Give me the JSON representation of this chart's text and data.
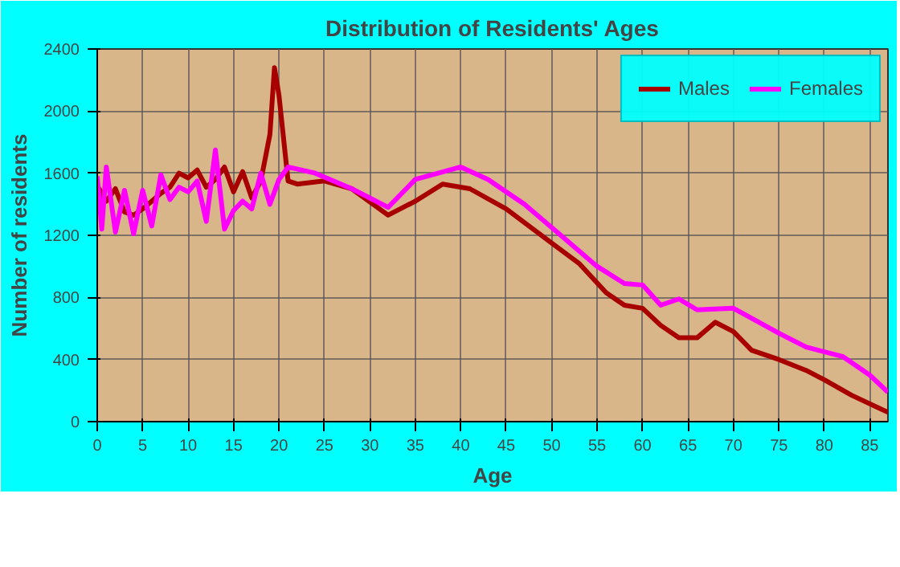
{
  "chart_data": {
    "type": "line",
    "title": "Distribution of Residents' Ages",
    "xlabel": "Age",
    "ylabel": "Number of residents",
    "xlim": [
      0,
      87
    ],
    "xticks": [
      0,
      5,
      10,
      15,
      20,
      25,
      30,
      35,
      40,
      45,
      50,
      55,
      60,
      65,
      70,
      75,
      80,
      85
    ],
    "ylim": [
      0,
      2400
    ],
    "yticks": [
      0,
      400,
      800,
      1200,
      1600,
      2000,
      2400
    ],
    "grid": true,
    "legend": "top right",
    "line_style": "solid",
    "marker": "none",
    "series": [
      {
        "name": "Males",
        "color": "#a80000",
        "x": [
          0,
          1,
          2,
          3,
          4,
          5,
          6,
          7,
          8,
          9,
          10,
          11,
          12,
          13,
          14,
          15,
          16,
          17,
          18,
          19,
          19.5,
          20,
          21,
          22,
          25,
          28,
          32,
          35,
          38,
          41,
          45,
          50,
          53,
          56,
          58,
          60,
          62,
          64,
          66,
          68,
          70,
          72,
          75,
          78,
          80,
          83,
          87
        ],
        "values": [
          1520,
          1420,
          1500,
          1350,
          1330,
          1370,
          1420,
          1470,
          1510,
          1600,
          1570,
          1620,
          1510,
          1560,
          1640,
          1480,
          1610,
          1440,
          1550,
          1850,
          2280,
          2100,
          1550,
          1530,
          1550,
          1500,
          1330,
          1420,
          1530,
          1500,
          1370,
          1150,
          1020,
          830,
          750,
          730,
          620,
          540,
          540,
          640,
          580,
          460,
          400,
          330,
          270,
          170,
          60
        ]
      },
      {
        "name": "Females",
        "color": "#ff00ff",
        "x": [
          0,
          0.5,
          1,
          2,
          3,
          4,
          5,
          6,
          7,
          8,
          9,
          10,
          11,
          12,
          13,
          14,
          15,
          16,
          17,
          18,
          19,
          20,
          21,
          24,
          28,
          32,
          35,
          40,
          43,
          47,
          50,
          55,
          58,
          60,
          62,
          64,
          66,
          70,
          75,
          78,
          82,
          85,
          87
        ],
        "values": [
          1580,
          1240,
          1640,
          1220,
          1490,
          1210,
          1490,
          1260,
          1590,
          1430,
          1510,
          1480,
          1550,
          1290,
          1750,
          1240,
          1360,
          1420,
          1370,
          1600,
          1400,
          1560,
          1640,
          1600,
          1500,
          1380,
          1560,
          1640,
          1560,
          1400,
          1250,
          1000,
          890,
          880,
          750,
          790,
          720,
          730,
          570,
          480,
          420,
          300,
          190
        ]
      }
    ]
  }
}
